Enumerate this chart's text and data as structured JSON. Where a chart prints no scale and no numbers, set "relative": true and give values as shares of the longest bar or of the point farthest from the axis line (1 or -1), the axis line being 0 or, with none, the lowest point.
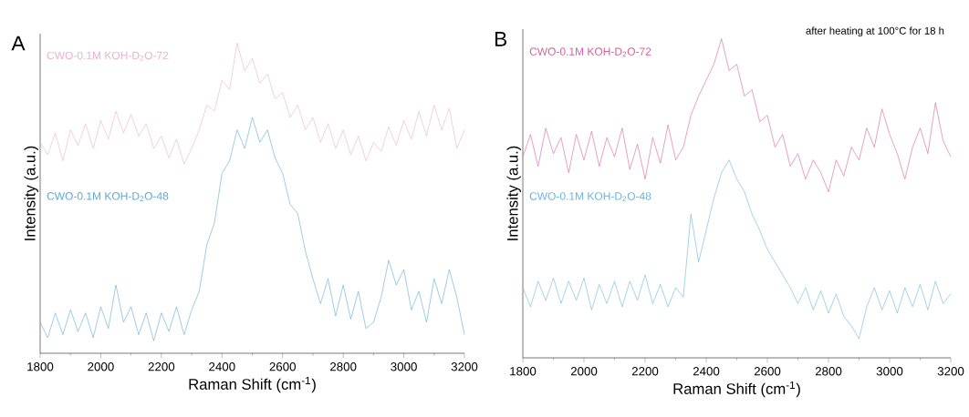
{
  "chart_data": [
    {
      "type": "line",
      "relative": true,
      "xlabel": "Raman Shift (cm$^{-1}$)",
      "ylabel": "Intensity (a.u.)",
      "annotations": [
        "A"
      ],
      "x": [
        1800,
        1825,
        1850,
        1875,
        1900,
        1925,
        1950,
        1975,
        2000,
        2025,
        2050,
        2075,
        2100,
        2125,
        2150,
        2175,
        2200,
        2225,
        2250,
        2275,
        2300,
        2325,
        2350,
        2375,
        2400,
        2425,
        2450,
        2475,
        2500,
        2525,
        2550,
        2575,
        2600,
        2625,
        2650,
        2675,
        2700,
        2725,
        2750,
        2775,
        2800,
        2825,
        2850,
        2875,
        2900,
        2925,
        2950,
        2975,
        3000,
        3025,
        3050,
        3075,
        3100,
        3125,
        3150,
        3175,
        3200
      ],
      "xlim": [
        1800,
        3200
      ],
      "xticks": [
        1800,
        2000,
        2200,
        2400,
        2600,
        2800,
        3000,
        3200
      ],
      "series": [
        {
          "name": "CWO-0.1M KOH-D$_{2}$O-72",
          "color": "#ebb0cb",
          "values": [
            0.68,
            0.64,
            0.71,
            0.62,
            0.72,
            0.67,
            0.74,
            0.66,
            0.75,
            0.69,
            0.78,
            0.71,
            0.77,
            0.7,
            0.74,
            0.66,
            0.7,
            0.63,
            0.69,
            0.61,
            0.66,
            0.72,
            0.8,
            0.78,
            0.88,
            0.85,
            1.0,
            0.91,
            0.95,
            0.87,
            0.9,
            0.82,
            0.84,
            0.76,
            0.8,
            0.72,
            0.76,
            0.68,
            0.74,
            0.66,
            0.72,
            0.64,
            0.7,
            0.62,
            0.68,
            0.65,
            0.73,
            0.67,
            0.75,
            0.69,
            0.78,
            0.7,
            0.8,
            0.72,
            0.79,
            0.66,
            0.72
          ]
        },
        {
          "name": "CWO-0.1M KOH-D$_{2}$O-48",
          "color": "#5aa9d6",
          "values": [
            0.1,
            0.05,
            0.13,
            0.06,
            0.14,
            0.07,
            0.13,
            0.05,
            0.15,
            0.08,
            0.22,
            0.1,
            0.15,
            0.06,
            0.13,
            0.04,
            0.13,
            0.07,
            0.15,
            0.06,
            0.14,
            0.2,
            0.35,
            0.42,
            0.58,
            0.62,
            0.72,
            0.66,
            0.76,
            0.68,
            0.72,
            0.63,
            0.58,
            0.48,
            0.45,
            0.33,
            0.24,
            0.16,
            0.24,
            0.12,
            0.22,
            0.11,
            0.2,
            0.08,
            0.1,
            0.18,
            0.3,
            0.22,
            0.27,
            0.14,
            0.2,
            0.1,
            0.24,
            0.16,
            0.27,
            0.18,
            0.06
          ]
        }
      ]
    },
    {
      "type": "line",
      "relative": true,
      "xlabel": "Raman Shift (cm$^{-1}$)",
      "ylabel": "Intensity (a.u.)",
      "annotations": [
        "B",
        "after heating at 100°C for 18 h"
      ],
      "x": [
        1800,
        1825,
        1850,
        1875,
        1900,
        1925,
        1950,
        1975,
        2000,
        2025,
        2050,
        2075,
        2100,
        2125,
        2150,
        2175,
        2200,
        2225,
        2250,
        2275,
        2300,
        2325,
        2350,
        2375,
        2400,
        2425,
        2450,
        2475,
        2500,
        2525,
        2550,
        2575,
        2600,
        2625,
        2650,
        2675,
        2700,
        2725,
        2750,
        2775,
        2800,
        2825,
        2850,
        2875,
        2900,
        2925,
        2950,
        2975,
        3000,
        3025,
        3050,
        3075,
        3100,
        3125,
        3150,
        3175,
        3200
      ],
      "xlim": [
        1800,
        3200
      ],
      "xticks": [
        1800,
        2000,
        2200,
        2400,
        2600,
        2800,
        3000,
        3200
      ],
      "series": [
        {
          "name": "CWO-0.1M KOH-D$_{2}$O-72",
          "color": "#d6609a",
          "values": [
            0.63,
            0.7,
            0.6,
            0.72,
            0.64,
            0.69,
            0.58,
            0.7,
            0.62,
            0.71,
            0.6,
            0.69,
            0.63,
            0.72,
            0.59,
            0.67,
            0.56,
            0.69,
            0.61,
            0.73,
            0.62,
            0.66,
            0.76,
            0.82,
            0.87,
            0.92,
            1.0,
            0.9,
            0.92,
            0.82,
            0.84,
            0.74,
            0.76,
            0.66,
            0.7,
            0.6,
            0.64,
            0.56,
            0.62,
            0.58,
            0.52,
            0.62,
            0.57,
            0.66,
            0.62,
            0.72,
            0.66,
            0.78,
            0.7,
            0.64,
            0.56,
            0.66,
            0.72,
            0.64,
            0.8,
            0.68,
            0.63
          ]
        },
        {
          "name": "CWO-0.1M KOH-D$_{2}$O-48",
          "color": "#6ab3dc",
          "values": [
            0.22,
            0.16,
            0.24,
            0.18,
            0.25,
            0.17,
            0.24,
            0.18,
            0.25,
            0.15,
            0.23,
            0.17,
            0.24,
            0.16,
            0.24,
            0.18,
            0.26,
            0.17,
            0.23,
            0.16,
            0.22,
            0.19,
            0.45,
            0.3,
            0.4,
            0.5,
            0.58,
            0.62,
            0.56,
            0.52,
            0.45,
            0.4,
            0.34,
            0.3,
            0.26,
            0.22,
            0.17,
            0.22,
            0.15,
            0.21,
            0.14,
            0.2,
            0.13,
            0.1,
            0.06,
            0.16,
            0.22,
            0.15,
            0.21,
            0.14,
            0.22,
            0.16,
            0.23,
            0.15,
            0.24,
            0.17,
            0.2
          ]
        }
      ]
    }
  ]
}
